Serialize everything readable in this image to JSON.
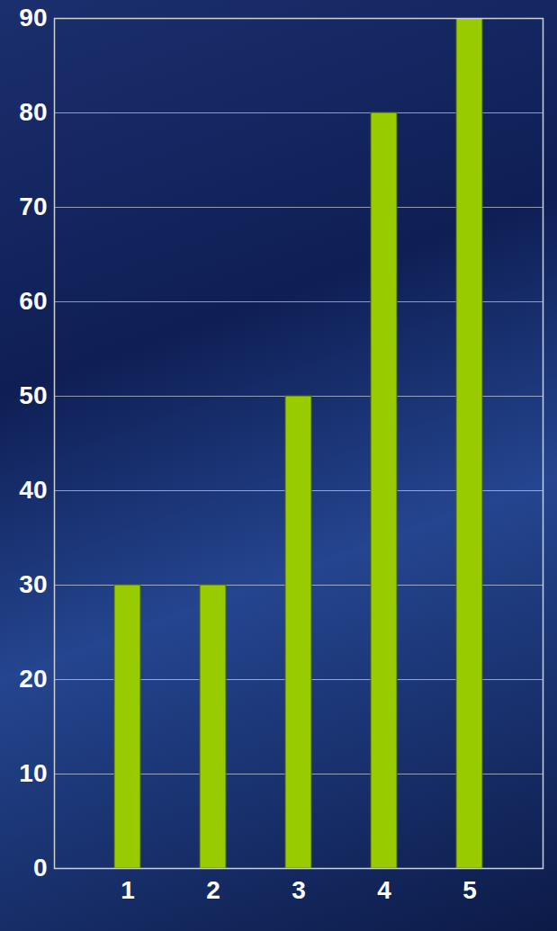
{
  "chart_data": {
    "type": "bar",
    "categories": [
      "1",
      "2",
      "3",
      "4",
      "5"
    ],
    "values": [
      30,
      30,
      50,
      80,
      90
    ],
    "color": "#99cc00",
    "ylim": [
      0,
      90
    ],
    "yticks": [
      0,
      10,
      20,
      30,
      40,
      50,
      60,
      70,
      80,
      90
    ],
    "grid": true
  }
}
